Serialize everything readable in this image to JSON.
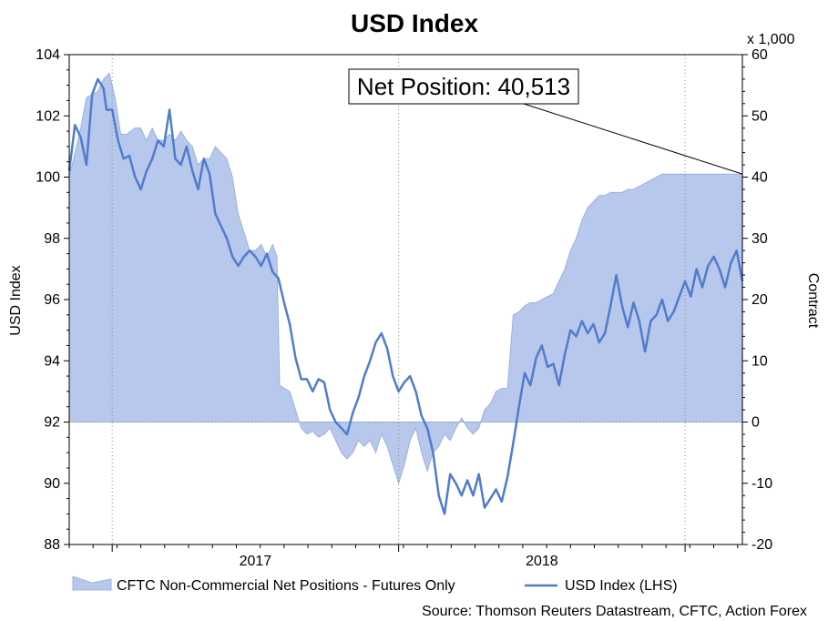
{
  "colors": {
    "area_fill": "#b8c8ec",
    "area_edge": "#8ea8dd",
    "line": "#4f7ccc",
    "grid": "#8a8a8a",
    "text": "#000000"
  },
  "chart_data": {
    "type": "line",
    "title": "USD Index",
    "ylabel_left": "USD Index",
    "ylabel_right": "Contract",
    "right_axis_unit": "x 1,000",
    "x_tick_labels": [
      "2017",
      "2018"
    ],
    "left_axis": {
      "ylim": [
        88,
        104
      ],
      "ticks": [
        88,
        90,
        92,
        94,
        96,
        98,
        100,
        102,
        104
      ]
    },
    "right_axis": {
      "ylim": [
        -20,
        60
      ],
      "ticks": [
        -20,
        -10,
        0,
        10,
        20,
        30,
        40,
        50,
        60
      ]
    },
    "x_range": [
      2016.25,
      2018.6
    ],
    "grid": {
      "vertical_dates": [
        2016.4,
        2017.4,
        2018.4
      ],
      "horizontal_right": 0
    },
    "annotation": {
      "text": "Net Position: 40,513",
      "x": 2018.6,
      "y_right": 40.5
    },
    "series": [
      {
        "name": "CFTC Non-Commercial Net Positions - Futures Only",
        "type": "area",
        "axis": "right",
        "points": [
          [
            2016.25,
            40
          ],
          [
            2016.27,
            44
          ],
          [
            2016.29,
            48
          ],
          [
            2016.31,
            53
          ],
          [
            2016.33,
            53.5
          ],
          [
            2016.35,
            54
          ],
          [
            2016.37,
            56
          ],
          [
            2016.39,
            57
          ],
          [
            2016.41,
            53
          ],
          [
            2016.43,
            47
          ],
          [
            2016.45,
            47
          ],
          [
            2016.48,
            48
          ],
          [
            2016.5,
            48
          ],
          [
            2016.52,
            46
          ],
          [
            2016.54,
            48
          ],
          [
            2016.56,
            46
          ],
          [
            2016.58,
            46
          ],
          [
            2016.6,
            47
          ],
          [
            2016.62,
            46
          ],
          [
            2016.64,
            47.5
          ],
          [
            2016.66,
            46
          ],
          [
            2016.68,
            45
          ],
          [
            2016.7,
            42
          ],
          [
            2016.72,
            43
          ],
          [
            2016.74,
            43
          ],
          [
            2016.76,
            45
          ],
          [
            2016.78,
            44
          ],
          [
            2016.8,
            43
          ],
          [
            2016.82,
            40
          ],
          [
            2016.84,
            34
          ],
          [
            2016.86,
            31
          ],
          [
            2016.88,
            28
          ],
          [
            2016.9,
            28
          ],
          [
            2016.92,
            29
          ],
          [
            2016.94,
            27
          ],
          [
            2016.96,
            29
          ],
          [
            2016.975,
            27
          ],
          [
            2016.985,
            6
          ],
          [
            2017.0,
            5.5
          ],
          [
            2017.02,
            5
          ],
          [
            2017.04,
            2
          ],
          [
            2017.06,
            -1
          ],
          [
            2017.08,
            -2
          ],
          [
            2017.1,
            -1.5
          ],
          [
            2017.12,
            -2.5
          ],
          [
            2017.14,
            -2
          ],
          [
            2017.16,
            -1
          ],
          [
            2017.18,
            -3
          ],
          [
            2017.2,
            -5
          ],
          [
            2017.22,
            -6
          ],
          [
            2017.24,
            -5
          ],
          [
            2017.26,
            -3
          ],
          [
            2017.28,
            -4
          ],
          [
            2017.3,
            -3
          ],
          [
            2017.32,
            -5
          ],
          [
            2017.34,
            -2
          ],
          [
            2017.36,
            -4
          ],
          [
            2017.38,
            -7
          ],
          [
            2017.4,
            -10
          ],
          [
            2017.42,
            -7
          ],
          [
            2017.44,
            -3
          ],
          [
            2017.46,
            -1
          ],
          [
            2017.48,
            -5
          ],
          [
            2017.5,
            -8
          ],
          [
            2017.52,
            -5
          ],
          [
            2017.54,
            -4
          ],
          [
            2017.56,
            -2
          ],
          [
            2017.58,
            -3
          ],
          [
            2017.6,
            -1
          ],
          [
            2017.62,
            0.7
          ],
          [
            2017.64,
            -1
          ],
          [
            2017.66,
            -2
          ],
          [
            2017.68,
            -1
          ],
          [
            2017.7,
            2
          ],
          [
            2017.72,
            3
          ],
          [
            2017.74,
            5
          ],
          [
            2017.76,
            5.5
          ],
          [
            2017.78,
            5.5
          ],
          [
            2017.8,
            17.5
          ],
          [
            2017.82,
            18
          ],
          [
            2017.84,
            19
          ],
          [
            2017.86,
            19.5
          ],
          [
            2017.88,
            19.5
          ],
          [
            2017.9,
            20
          ],
          [
            2017.92,
            20.5
          ],
          [
            2017.94,
            21
          ],
          [
            2017.96,
            23
          ],
          [
            2017.98,
            25
          ],
          [
            2018.0,
            28
          ],
          [
            2018.02,
            30
          ],
          [
            2018.04,
            33
          ],
          [
            2018.06,
            35
          ],
          [
            2018.08,
            36
          ],
          [
            2018.1,
            37
          ],
          [
            2018.12,
            37
          ],
          [
            2018.14,
            37.5
          ],
          [
            2018.16,
            37.5
          ],
          [
            2018.18,
            37.5
          ],
          [
            2018.2,
            38
          ],
          [
            2018.22,
            38
          ],
          [
            2018.24,
            38.5
          ],
          [
            2018.26,
            39
          ],
          [
            2018.28,
            39.5
          ],
          [
            2018.3,
            40
          ],
          [
            2018.32,
            40.5
          ],
          [
            2018.34,
            40.5
          ],
          [
            2018.36,
            40.5
          ],
          [
            2018.38,
            40.5
          ],
          [
            2018.4,
            40.5
          ],
          [
            2018.42,
            40.5
          ],
          [
            2018.44,
            40.5
          ],
          [
            2018.46,
            40.5
          ],
          [
            2018.48,
            40.5
          ],
          [
            2018.5,
            40.5
          ],
          [
            2018.52,
            40.5
          ],
          [
            2018.54,
            40.5
          ],
          [
            2018.56,
            40.5
          ],
          [
            2018.58,
            40.5
          ],
          [
            2018.6,
            40.5
          ]
        ]
      },
      {
        "name": "USD Index (LHS)",
        "type": "line",
        "axis": "left",
        "points": [
          [
            2016.25,
            100.2
          ],
          [
            2016.27,
            101.7
          ],
          [
            2016.29,
            101.3
          ],
          [
            2016.31,
            100.4
          ],
          [
            2016.33,
            102.7
          ],
          [
            2016.35,
            103.2
          ],
          [
            2016.37,
            102.9
          ],
          [
            2016.38,
            102.2
          ],
          [
            2016.4,
            102.2
          ],
          [
            2016.42,
            101.2
          ],
          [
            2016.44,
            100.6
          ],
          [
            2016.46,
            100.7
          ],
          [
            2016.48,
            100.0
          ],
          [
            2016.5,
            99.6
          ],
          [
            2016.52,
            100.2
          ],
          [
            2016.54,
            100.6
          ],
          [
            2016.56,
            101.2
          ],
          [
            2016.58,
            101.0
          ],
          [
            2016.6,
            102.2
          ],
          [
            2016.62,
            100.6
          ],
          [
            2016.64,
            100.4
          ],
          [
            2016.66,
            101.0
          ],
          [
            2016.68,
            100.2
          ],
          [
            2016.7,
            99.6
          ],
          [
            2016.72,
            100.6
          ],
          [
            2016.74,
            100.1
          ],
          [
            2016.76,
            98.8
          ],
          [
            2016.78,
            98.4
          ],
          [
            2016.8,
            98.0
          ],
          [
            2016.82,
            97.4
          ],
          [
            2016.84,
            97.1
          ],
          [
            2016.86,
            97.4
          ],
          [
            2016.88,
            97.6
          ],
          [
            2016.9,
            97.4
          ],
          [
            2016.92,
            97.1
          ],
          [
            2016.94,
            97.5
          ],
          [
            2016.96,
            96.9
          ],
          [
            2016.98,
            96.7
          ],
          [
            2017.0,
            95.9
          ],
          [
            2017.02,
            95.2
          ],
          [
            2017.04,
            94.1
          ],
          [
            2017.06,
            93.4
          ],
          [
            2017.08,
            93.4
          ],
          [
            2017.1,
            93.0
          ],
          [
            2017.12,
            93.4
          ],
          [
            2017.14,
            93.3
          ],
          [
            2017.16,
            92.4
          ],
          [
            2017.18,
            92.0
          ],
          [
            2017.2,
            91.8
          ],
          [
            2017.22,
            91.6
          ],
          [
            2017.24,
            92.3
          ],
          [
            2017.26,
            92.8
          ],
          [
            2017.28,
            93.5
          ],
          [
            2017.3,
            94.0
          ],
          [
            2017.32,
            94.6
          ],
          [
            2017.34,
            94.9
          ],
          [
            2017.36,
            94.4
          ],
          [
            2017.38,
            93.5
          ],
          [
            2017.4,
            93.0
          ],
          [
            2017.42,
            93.3
          ],
          [
            2017.44,
            93.5
          ],
          [
            2017.46,
            93.0
          ],
          [
            2017.48,
            92.2
          ],
          [
            2017.5,
            91.8
          ],
          [
            2017.52,
            91.0
          ],
          [
            2017.54,
            89.6
          ],
          [
            2017.56,
            89.0
          ],
          [
            2017.58,
            90.3
          ],
          [
            2017.6,
            90.0
          ],
          [
            2017.62,
            89.6
          ],
          [
            2017.64,
            90.1
          ],
          [
            2017.66,
            89.6
          ],
          [
            2017.68,
            90.3
          ],
          [
            2017.7,
            89.2
          ],
          [
            2017.72,
            89.5
          ],
          [
            2017.74,
            89.8
          ],
          [
            2017.76,
            89.4
          ],
          [
            2017.78,
            90.2
          ],
          [
            2017.8,
            91.3
          ],
          [
            2017.82,
            92.5
          ],
          [
            2017.84,
            93.6
          ],
          [
            2017.86,
            93.2
          ],
          [
            2017.88,
            94.1
          ],
          [
            2017.9,
            94.5
          ],
          [
            2017.92,
            93.8
          ],
          [
            2017.94,
            93.9
          ],
          [
            2017.96,
            93.2
          ],
          [
            2017.98,
            94.2
          ],
          [
            2018.0,
            95.0
          ],
          [
            2018.02,
            94.8
          ],
          [
            2018.04,
            95.3
          ],
          [
            2018.06,
            94.9
          ],
          [
            2018.08,
            95.2
          ],
          [
            2018.1,
            94.6
          ],
          [
            2018.12,
            94.9
          ],
          [
            2018.14,
            95.8
          ],
          [
            2018.16,
            96.8
          ],
          [
            2018.18,
            95.8
          ],
          [
            2018.2,
            95.1
          ],
          [
            2018.22,
            95.9
          ],
          [
            2018.24,
            95.3
          ],
          [
            2018.26,
            94.3
          ],
          [
            2018.28,
            95.3
          ],
          [
            2018.3,
            95.5
          ],
          [
            2018.32,
            96.0
          ],
          [
            2018.34,
            95.3
          ],
          [
            2018.36,
            95.6
          ],
          [
            2018.38,
            96.1
          ],
          [
            2018.4,
            96.6
          ],
          [
            2018.42,
            96.1
          ],
          [
            2018.44,
            97.0
          ],
          [
            2018.46,
            96.4
          ],
          [
            2018.48,
            97.1
          ],
          [
            2018.5,
            97.4
          ],
          [
            2018.52,
            97.0
          ],
          [
            2018.54,
            96.4
          ],
          [
            2018.56,
            97.2
          ],
          [
            2018.58,
            97.6
          ],
          [
            2018.6,
            96.6
          ]
        ]
      }
    ],
    "source": "Source: Thomson Reuters Datastream, CFTC, Action Forex"
  }
}
